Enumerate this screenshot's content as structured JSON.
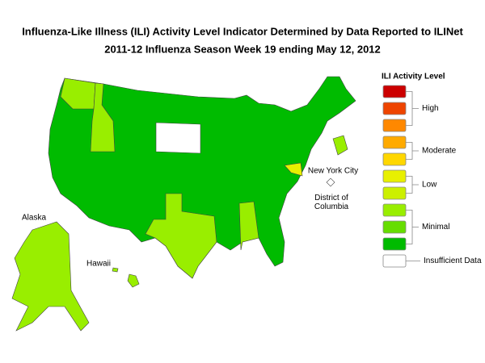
{
  "header": {
    "title": "Influenza-Like Illness (ILI) Activity Level Indicator Determined by Data Reported to ILINet",
    "subtitle": "2011-12  Influenza Season Week  19 ending May 12, 2012"
  },
  "map": {
    "labels": {
      "alaska": "Alaska",
      "hawaii": "Hawaii",
      "nyc": "New York City",
      "dc": "District of Columbia"
    }
  },
  "legend": {
    "title": "ILI Activity Level",
    "colors": [
      "#cc0000",
      "#ee4400",
      "#ff8800",
      "#ffaa00",
      "#ffd700",
      "#e8f000",
      "#ccf000",
      "#99ee00",
      "#66dd00",
      "#00bb00",
      "#ffffff"
    ],
    "groups": [
      {
        "label": "High",
        "from": 0,
        "to": 2
      },
      {
        "label": "Moderate",
        "from": 3,
        "to": 4
      },
      {
        "label": "Low",
        "from": 5,
        "to": 6
      },
      {
        "label": "Minimal",
        "from": 7,
        "to": 9
      },
      {
        "label": "Insufficient Data",
        "from": 10,
        "to": 10
      }
    ]
  }
}
